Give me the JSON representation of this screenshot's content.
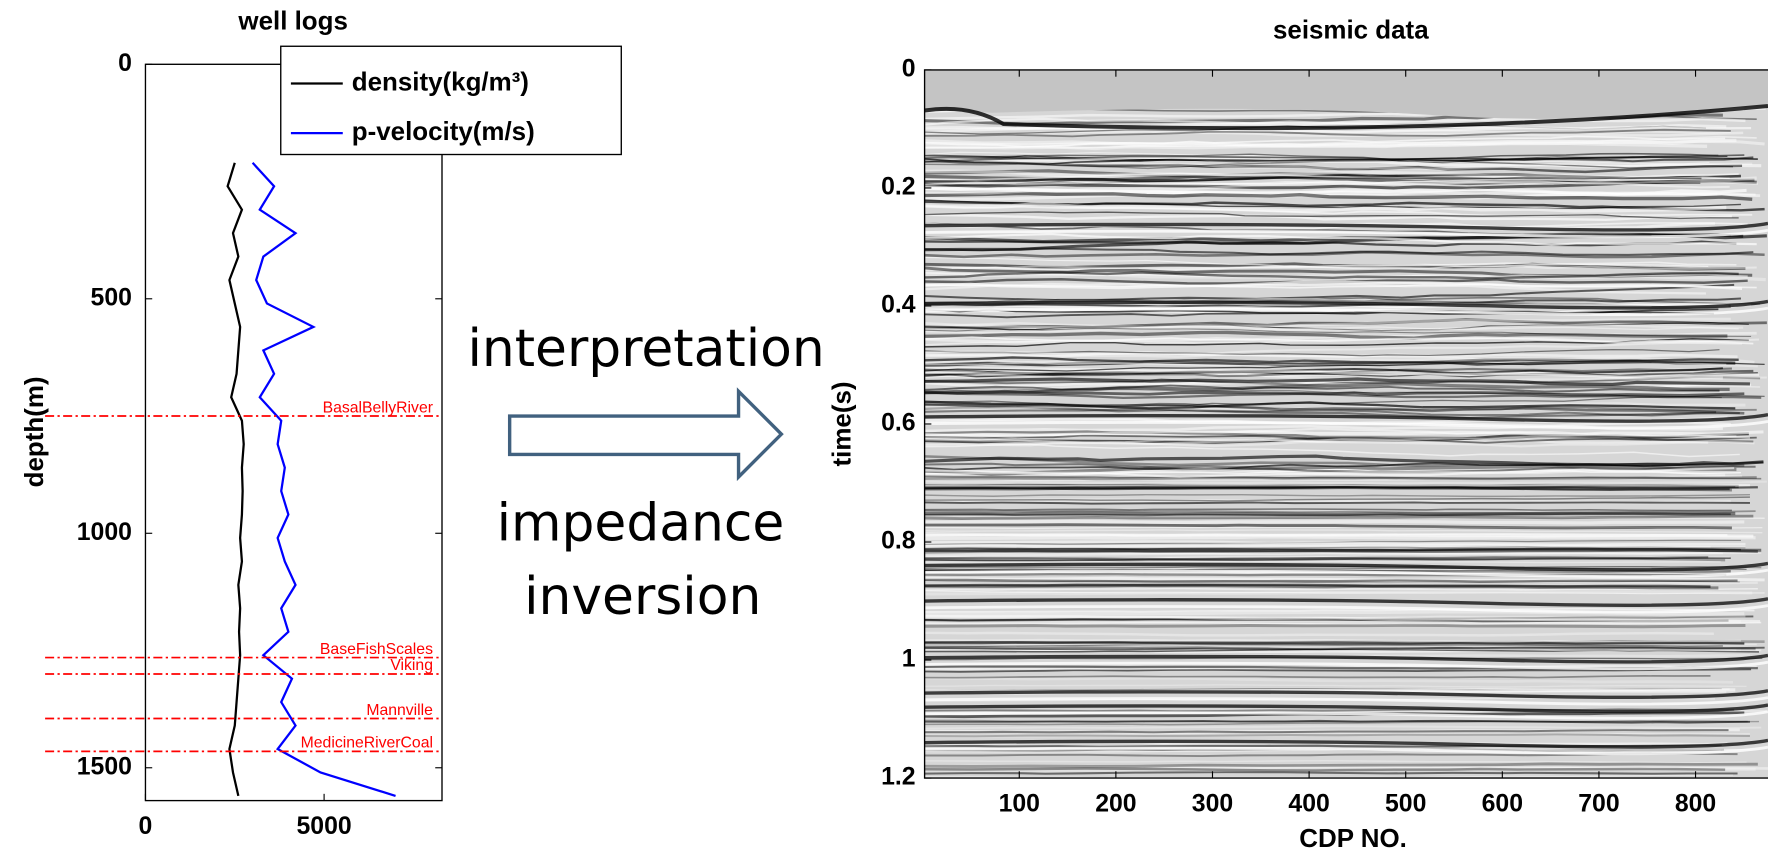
{
  "chart_data": [
    {
      "type": "line",
      "title": "well logs",
      "y_label": "depth(m)",
      "reversed": true,
      "depth": [
        210,
        260,
        310,
        360,
        410,
        460,
        510,
        560,
        610,
        660,
        710,
        760,
        810,
        860,
        910,
        960,
        1010,
        1060,
        1110,
        1160,
        1210,
        1260,
        1310,
        1360,
        1410,
        1460,
        1510,
        1560
      ],
      "series": [
        {
          "name": "density(kg/m³)",
          "color": "#000000",
          "values": [
            2500,
            2300,
            2700,
            2450,
            2600,
            2350,
            2500,
            2650,
            2600,
            2550,
            2400,
            2700,
            2750,
            2700,
            2720,
            2700,
            2650,
            2700,
            2600,
            2650,
            2620,
            2650,
            2600,
            2550,
            2500,
            2350,
            2450,
            2600
          ]
        },
        {
          "name": "p-velocity(m/s)",
          "color": "#0000ff",
          "values": [
            3000,
            3600,
            3200,
            4200,
            3300,
            3100,
            3400,
            4700,
            3300,
            3600,
            3200,
            3800,
            3700,
            3900,
            3800,
            4000,
            3700,
            3900,
            4200,
            3800,
            4000,
            3300,
            4100,
            3800,
            4200,
            3700,
            4900,
            7000
          ]
        }
      ],
      "horizons": [
        {
          "name": "BasalBellyRiver",
          "depth": 750
        },
        {
          "name": "BaseFishScales",
          "depth": 1265
        },
        {
          "name": "Viking",
          "depth": 1300
        },
        {
          "name": "Mannville",
          "depth": 1395
        },
        {
          "name": "MedicineRiverCoal",
          "depth": 1465
        }
      ],
      "xlim": [
        0,
        8300
      ],
      "xticks": [
        0,
        5000
      ],
      "ylim": [
        0,
        1570
      ],
      "yticks": [
        0,
        500,
        1000,
        1500
      ]
    },
    {
      "type": "image",
      "title": "seismic data",
      "x_label": "CDP NO.",
      "y_label": "time(s)",
      "reversed": true,
      "xlim": [
        2,
        875
      ],
      "xticks": [
        100,
        200,
        300,
        400,
        500,
        600,
        700,
        800
      ],
      "ylim": [
        0,
        1.2
      ],
      "yticks": [
        0,
        0.2,
        0.4,
        0.6,
        0.8,
        1,
        1.2
      ]
    }
  ],
  "annotations": {
    "arrow_top": "interpretation",
    "arrow_bottom": [
      "impedance",
      "inversion"
    ]
  }
}
